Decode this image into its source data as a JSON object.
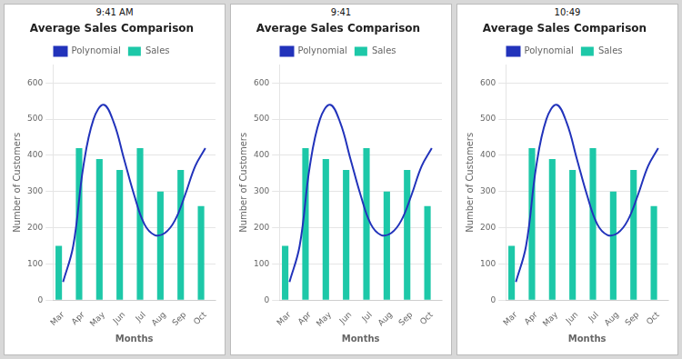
{
  "chart_data": [
    {
      "type": "bar",
      "title": "Average Sales Comparison",
      "annotations": [
        "9:41 AM"
      ],
      "xlabel": "Months",
      "ylabel": "Number of Customers",
      "categories": [
        "Mar",
        "Apr",
        "May",
        "Jun",
        "Jul",
        "Aug",
        "Sep",
        "Oct"
      ],
      "series": [
        {
          "name": "Sales",
          "type": "bar",
          "color": "#1DC8A8",
          "values": [
            150,
            420,
            390,
            360,
            420,
            300,
            360,
            260
          ]
        },
        {
          "name": "Polynomial",
          "type": "line",
          "color": "#2233BB",
          "x": [
            0,
            0.5,
            1.0,
            1.5,
            2.0,
            2.5,
            3.0,
            3.5,
            4.0,
            4.5,
            5.0,
            5.5,
            6.0,
            6.5,
            7.0
          ],
          "values": [
            50,
            150,
            370,
            500,
            540,
            490,
            390,
            290,
            210,
            180,
            185,
            220,
            290,
            370,
            420
          ]
        }
      ],
      "ylim": [
        0,
        650
      ],
      "yticks": [
        0,
        100,
        200,
        300,
        400,
        500,
        600
      ],
      "grid": true,
      "legend": "top"
    },
    {
      "type": "bar",
      "title": "Average Sales Comparison",
      "annotations": [
        "9:41"
      ],
      "xlabel": "Months",
      "ylabel": "Number of Customers",
      "categories": [
        "Mar",
        "Apr",
        "May",
        "Jun",
        "Jul",
        "Aug",
        "Sep",
        "Oct"
      ],
      "series": [
        {
          "name": "Sales",
          "type": "bar",
          "color": "#1DC8A8",
          "values": [
            150,
            420,
            390,
            360,
            420,
            300,
            360,
            260
          ]
        },
        {
          "name": "Polynomial",
          "type": "line",
          "color": "#2233BB",
          "x": [
            0,
            0.5,
            1.0,
            1.5,
            2.0,
            2.5,
            3.0,
            3.5,
            4.0,
            4.5,
            5.0,
            5.5,
            6.0,
            6.5,
            7.0
          ],
          "values": [
            50,
            150,
            370,
            500,
            540,
            490,
            390,
            290,
            210,
            180,
            185,
            220,
            290,
            370,
            420
          ]
        }
      ],
      "ylim": [
        0,
        650
      ],
      "yticks": [
        0,
        100,
        200,
        300,
        400,
        500,
        600
      ],
      "grid": true,
      "legend": "top"
    },
    {
      "type": "bar",
      "title": "Average Sales Comparison",
      "annotations": [
        "10:49"
      ],
      "xlabel": "Months",
      "ylabel": "Number of Customers",
      "categories": [
        "Mar",
        "Apr",
        "May",
        "Jun",
        "Jul",
        "Aug",
        "Sep",
        "Oct"
      ],
      "series": [
        {
          "name": "Sales",
          "type": "bar",
          "color": "#1DC8A8",
          "values": [
            150,
            420,
            390,
            360,
            420,
            300,
            360,
            260
          ]
        },
        {
          "name": "Polynomial",
          "type": "line",
          "color": "#2233BB",
          "x": [
            0,
            0.5,
            1.0,
            1.5,
            2.0,
            2.5,
            3.0,
            3.5,
            4.0,
            4.5,
            5.0,
            5.5,
            6.0,
            6.5,
            7.0
          ],
          "values": [
            50,
            150,
            370,
            500,
            540,
            490,
            390,
            290,
            210,
            180,
            185,
            220,
            290,
            370,
            420
          ]
        }
      ],
      "ylim": [
        0,
        650
      ],
      "yticks": [
        0,
        100,
        200,
        300,
        400,
        500,
        600
      ],
      "grid": true,
      "legend": "top"
    }
  ]
}
